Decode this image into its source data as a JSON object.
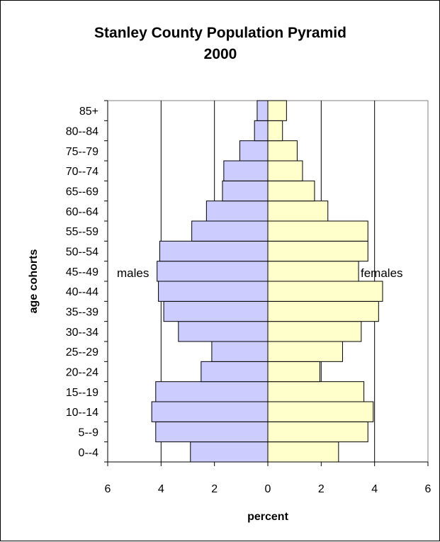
{
  "chart_data": {
    "type": "bar",
    "orientation": "horizontal",
    "title": "Stanley County Population Pyramid",
    "subtitle": "2000",
    "xlabel": "percent",
    "ylabel": "age cohorts",
    "xlim": [
      -6,
      6
    ],
    "x_ticks": [
      -6,
      -4,
      -2,
      0,
      2,
      4,
      6
    ],
    "x_tick_labels": [
      "6",
      "4",
      "2",
      "0",
      "2",
      "4",
      "6"
    ],
    "grid": "vertical gridlines",
    "categories": [
      "0--4",
      "5--9",
      "10--14",
      "15--19",
      "20--24",
      "25--29",
      "30--34",
      "35--39",
      "40--44",
      "45--49",
      "50--54",
      "55--59",
      "60--64",
      "65--69",
      "70--74",
      "75--79",
      "80--84",
      "85+"
    ],
    "series": [
      {
        "name": "males",
        "color": "#ccccff",
        "values": [
          2.9,
          4.2,
          4.35,
          4.2,
          2.5,
          2.1,
          3.35,
          3.9,
          4.1,
          4.15,
          4.05,
          2.85,
          2.3,
          1.7,
          1.65,
          1.05,
          0.5,
          0.4
        ]
      },
      {
        "name": "females",
        "color": "#ffffcc",
        "values": [
          2.65,
          3.75,
          3.95,
          3.6,
          1.95,
          2.8,
          3.5,
          4.15,
          4.3,
          3.4,
          3.75,
          3.75,
          2.25,
          1.75,
          1.3,
          1.1,
          0.55,
          0.7
        ]
      }
    ],
    "annotations": {
      "males": "males",
      "females": "females"
    }
  }
}
